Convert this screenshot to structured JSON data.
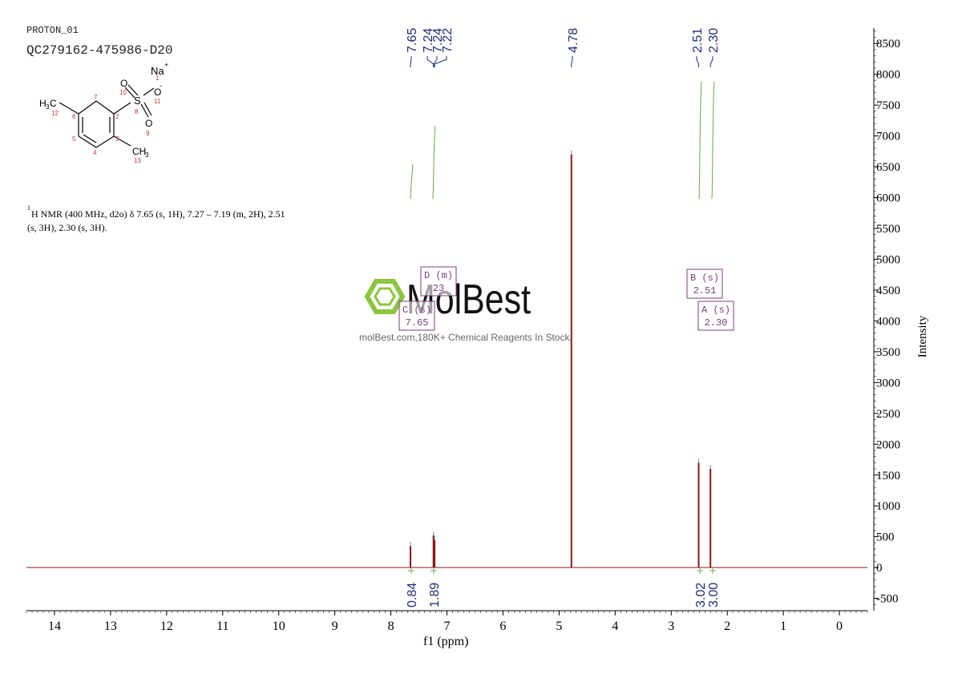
{
  "header": {
    "experiment": "PROTON_01",
    "sample_id": "QC279162-475986-D20"
  },
  "structure": {
    "name": "sodium 2,5-dimethylbenzenesulfonate",
    "counter_ion": "Na",
    "counter_ion_charge": "+",
    "oxygen_charge": "-",
    "atom_symbols": {
      "S": "S",
      "O": "O",
      "H3C": "H",
      "CH3": "CH"
    },
    "atom_numbers": [
      "1",
      "2",
      "3",
      "4",
      "5",
      "6",
      "7",
      "8",
      "9",
      "10",
      "11",
      "12",
      "13"
    ],
    "colors": {
      "bonds": "#000000",
      "atom_numbers": "#c0392b"
    }
  },
  "nmr_text": {
    "line1": "H NMR (400 MHz, d2o) δ 7.65 (s, 1H), 7.27 – 7.19 (m, 2H), 2.51",
    "line2": "(s, 3H), 2.30 (s, 3H).",
    "superscript": "1"
  },
  "watermark": {
    "brand": "MolBest",
    "tagline": "molBest.com,180K+ Chemical Reagents In Stock.",
    "icon": "hexagon-logo-icon",
    "color_icon": "#8cc63f"
  },
  "colors": {
    "spectrum": "#8b1a1a",
    "peak_label": "#1f2d7a",
    "integral_curve": "#6aa84f",
    "multiplet_box": "#7b3f7b",
    "axis": "#000000"
  },
  "chart_data": {
    "type": "line",
    "title": "",
    "xlabel": "f1 (ppm)",
    "ylabel": "Intensity",
    "xlim": [
      14.5,
      -0.5
    ],
    "ylim": [
      -700,
      8750
    ],
    "x_reversed": true,
    "x_ticks": [
      14,
      13,
      12,
      11,
      10,
      9,
      8,
      7,
      6,
      5,
      4,
      3,
      2,
      1,
      0
    ],
    "y_ticks": [
      -500,
      0,
      500,
      1000,
      1500,
      2000,
      2500,
      3000,
      3500,
      4000,
      4500,
      5000,
      5500,
      6000,
      6500,
      7000,
      7500,
      8000,
      8500
    ],
    "peaks": [
      {
        "ppm": 7.65,
        "intensity": 350
      },
      {
        "ppm": 7.24,
        "intensity": 520
      },
      {
        "ppm": 7.22,
        "intensity": 450
      },
      {
        "ppm": 4.78,
        "intensity": 6700
      },
      {
        "ppm": 2.51,
        "intensity": 1700
      },
      {
        "ppm": 2.3,
        "intensity": 1600
      }
    ],
    "peak_labels": [
      "7.65",
      "7.24",
      "7.24",
      "7.22",
      "4.78",
      "2.51",
      "2.30"
    ],
    "integrals": [
      {
        "from": 7.7,
        "to": 7.6,
        "value": "0.84"
      },
      {
        "from": 7.3,
        "to": 7.16,
        "value": "1.89"
      },
      {
        "from": 2.56,
        "to": 2.46,
        "value": "3.02"
      },
      {
        "from": 2.35,
        "to": 2.25,
        "value": "3.00"
      }
    ],
    "multiplets": [
      {
        "label": "D (m)",
        "value": "23"
      },
      {
        "label": "C (s)",
        "value": "7.65"
      },
      {
        "label": "B (s)",
        "value": "2.51"
      },
      {
        "label": "A (s)",
        "value": "2.30"
      }
    ],
    "grid": false,
    "legend": "none"
  }
}
